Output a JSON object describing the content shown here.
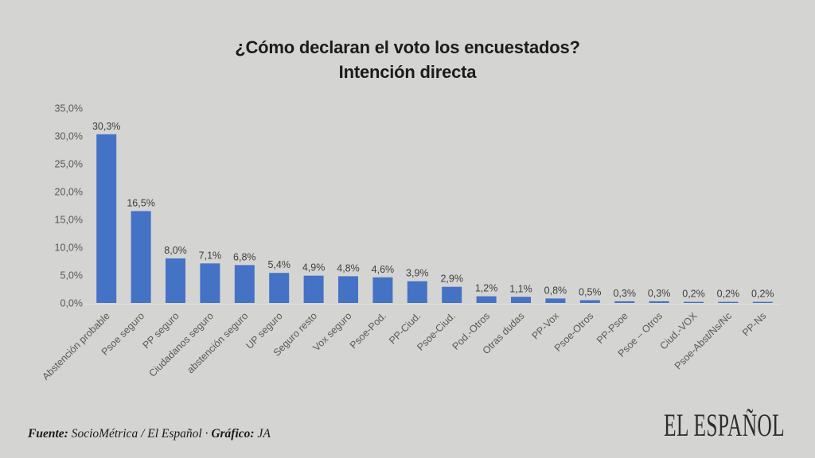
{
  "title": {
    "line1": "¿Cómo declaran el voto los encuestados?",
    "line2": "Intención directa"
  },
  "chart_data": {
    "type": "bar",
    "title": "¿Cómo declaran el voto los encuestados? Intención directa",
    "categories": [
      "Abstención probable",
      "Psoe seguro",
      "PP seguro",
      "Ciudadanos seguro",
      "abstención seguro",
      "UP seguro",
      "Seguro resto",
      "Vox seguro",
      "Psoe-Pod.",
      "PP-Ciud.",
      "Psoe-Ciud.",
      "Pod.-Otros",
      "Otras dudas",
      "PP-Vox",
      "Psoe-Otros",
      "PP-Psoe",
      "Psoe – Otros",
      "Ciud.-VOX",
      "Psoe-Abst/Ns/Nc",
      "PP-Ns"
    ],
    "values": [
      30.3,
      16.5,
      8.0,
      7.1,
      6.8,
      5.4,
      4.9,
      4.8,
      4.6,
      3.9,
      2.9,
      1.2,
      1.1,
      0.8,
      0.5,
      0.3,
      0.3,
      0.2,
      0.2,
      0.2
    ],
    "value_labels": [
      "30,3%",
      "16,5%",
      "8,0%",
      "7,1%",
      "6,8%",
      "5,4%",
      "4,9%",
      "4,8%",
      "4,6%",
      "3,9%",
      "2,9%",
      "1,2%",
      "1,1%",
      "0,8%",
      "0,5%",
      "0,3%",
      "0,3%",
      "0,2%",
      "0,2%",
      "0,2%"
    ],
    "xlabel": "",
    "ylabel": "",
    "ylim": [
      0,
      35
    ],
    "yticks": [
      0,
      5,
      10,
      15,
      20,
      25,
      30,
      35
    ],
    "ytick_labels": [
      "0,0%",
      "5,0%",
      "10,0%",
      "15,0%",
      "20,0%",
      "25,0%",
      "30,0%",
      "35,0%"
    ],
    "grid": false,
    "legend": "none"
  },
  "footer": {
    "source_label": "Fuente:",
    "source_value": " SocioMétrica / El Español ",
    "separator": "· ",
    "credit_label": "Gráfico:",
    "credit_value": " JA"
  },
  "logo": {
    "text": "EL ESPAÑOL"
  },
  "colors": {
    "background": "#d4d4d3",
    "bar": "#4472c4",
    "axis_text": "#595959",
    "value_label": "#3f3f3f",
    "axis_line": "#e3e3e2",
    "title_text": "#1b1b1b",
    "logo_text": "#2e2e2e"
  }
}
